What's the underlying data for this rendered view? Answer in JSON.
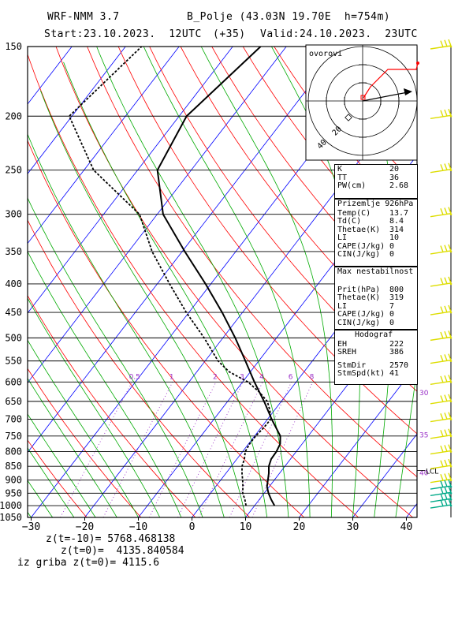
{
  "header": {
    "model": "WRF-NMM 3.7",
    "station": "B_Polje (43.03N 19.70E  h=754m)",
    "start": "Start:23.10.2023.  12UTC",
    "lead": "(+35)",
    "valid": "Valid:24.10.2023.  23UTC"
  },
  "stats": {
    "z10_label": "z(t=-10)=",
    "z10_value": "5768.468138",
    "z0_label": "z(t=0)=",
    "z0_value": "4135.840584",
    "grib_label": "iz griba z(t=0)=",
    "grib_value": "4115.6"
  },
  "indices": {
    "block1": [
      {
        "label": "K",
        "value": "20"
      },
      {
        "label": "TT",
        "value": "36"
      },
      {
        "label": "PW(cm)",
        "value": "2.68"
      }
    ],
    "block2_title": "Prizemlje 926hPa",
    "block2": [
      {
        "label": "Temp(C)",
        "value": "13.7"
      },
      {
        "label": "Td(C)",
        "value": "8.4"
      },
      {
        "label": "Thetae(K)",
        "value": "314"
      },
      {
        "label": "LI",
        "value": "10"
      },
      {
        "label": "CAPE(J/kg)",
        "value": "0"
      },
      {
        "label": "CIN(J/kg)",
        "value": "0"
      }
    ],
    "block3_title": "Max nestabilnost",
    "block3": [
      {
        "label": "Prit(hPa)",
        "value": "800"
      },
      {
        "label": "Thetae(K)",
        "value": "319"
      },
      {
        "label": "LI",
        "value": "7"
      },
      {
        "label": "CAPE(J/kg)",
        "value": "0"
      },
      {
        "label": "CIN(J/kg)",
        "value": "0"
      }
    ],
    "block4_title": "Hodograf",
    "block4": [
      {
        "label": "EH",
        "value": "222"
      },
      {
        "label": "SREH",
        "value": "386"
      },
      {
        "label": "StmDir",
        "value": "2570"
      },
      {
        "label": "StmSpd(kt)",
        "value": "41"
      }
    ]
  },
  "hodograph": {
    "label": "ovorovi",
    "ring_labels": [
      "20",
      "40"
    ]
  },
  "colors": {
    "isobar": "#000000",
    "isotherm": "#0000ff",
    "dry_adiabat": "#ff0000",
    "moist_adiabat": "#00aa00",
    "mixing_ratio": "#9a30c8",
    "wind_barb": "#dddd00",
    "wind_barb_low": "#00aa88"
  },
  "chart_data": {
    "type": "line",
    "title": "",
    "xlabel": "",
    "ylabel": "",
    "x_ticks": [
      -30,
      -20,
      -10,
      0,
      10,
      20,
      30,
      40
    ],
    "pressure_levels": [
      150,
      200,
      250,
      300,
      350,
      400,
      450,
      500,
      550,
      600,
      650,
      700,
      750,
      800,
      850,
      900,
      950,
      1000,
      1050
    ],
    "mixing_ratio_labels": [
      "0.5",
      "1",
      "2",
      "3",
      "4",
      "6",
      "8"
    ],
    "mixing_ratio_values": [
      0.5,
      1,
      2,
      3,
      4,
      6,
      8
    ],
    "side_labels": [
      {
        "text": "30",
        "pressure": 625
      },
      {
        "text": "35",
        "pressure": 745
      },
      {
        "text": "40",
        "pressure": 870
      }
    ],
    "lcl_label": "LCL",
    "lcl_pressure": 865,
    "series": [
      {
        "key": "temperature",
        "pressure": [
          1000,
          975,
          950,
          925,
          900,
          875,
          850,
          825,
          800,
          775,
          750,
          700,
          650,
          600,
          550,
          500,
          450,
          400,
          350,
          300,
          250,
          200,
          150
        ],
        "temp": [
          13.7,
          12.2,
          10.8,
          9.6,
          8.8,
          8.0,
          7.0,
          6.4,
          6.3,
          5.9,
          4.8,
          0.8,
          -3.2,
          -7.8,
          -12.5,
          -17.7,
          -23.8,
          -31.0,
          -39.5,
          -48.9,
          -56.3,
          -58.6,
          -54.8
        ]
      },
      {
        "key": "dewpoint",
        "pressure": [
          1000,
          975,
          950,
          925,
          900,
          875,
          850,
          825,
          800,
          775,
          750,
          725,
          700,
          675,
          650,
          625,
          600,
          575,
          550,
          500,
          450,
          400,
          350,
          300,
          250,
          200,
          150
        ],
        "temp": [
          8.4,
          7.3,
          6.0,
          5.1,
          4.1,
          3.0,
          2.0,
          1.4,
          0.5,
          0.2,
          0.2,
          0.5,
          0.6,
          -0.8,
          -2.6,
          -5.5,
          -9.0,
          -14.0,
          -17.6,
          -23.5,
          -30.5,
          -37.7,
          -45.6,
          -53.3,
          -68.2,
          -80.5,
          -77.0
        ]
      }
    ],
    "wind_barb_pressures": [
      150,
      200,
      250,
      300,
      350,
      400,
      450,
      500,
      550,
      600,
      650,
      700,
      750,
      800,
      850,
      900,
      925,
      950,
      975,
      1000
    ],
    "grid": true,
    "legend": "none"
  }
}
